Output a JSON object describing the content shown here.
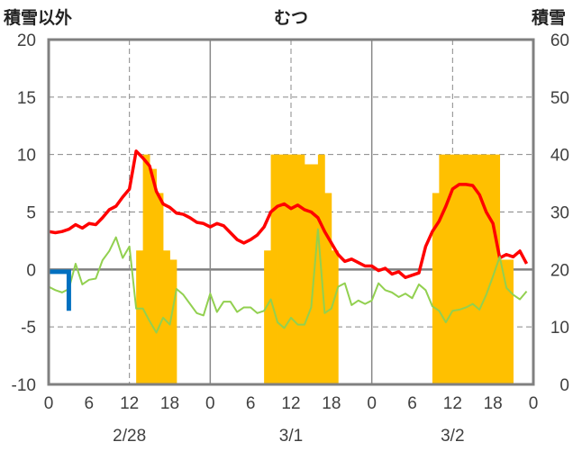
{
  "chart_data": {
    "type": "bar+line",
    "title": "むつ",
    "left_axis_label": "積雪以外",
    "right_axis_label": "積雪",
    "left_ylim": [
      -10,
      20
    ],
    "left_yticks": [
      20,
      15,
      10,
      5,
      0,
      -5,
      -10
    ],
    "right_ylim": [
      0,
      60
    ],
    "right_yticks": [
      60,
      50,
      40,
      30,
      20,
      10,
      0
    ],
    "xlim": [
      0,
      72
    ],
    "x_tick_labels": [
      "0",
      "6",
      "12",
      "18",
      "0",
      "6",
      "12",
      "18",
      "0",
      "6",
      "12",
      "18",
      "0"
    ],
    "date_labels": [
      {
        "hour": 12,
        "text": "2/28"
      },
      {
        "hour": 36,
        "text": "3/1"
      },
      {
        "hour": 60,
        "text": "3/2"
      }
    ],
    "grid": "dashed at 12h, solid at day boundaries",
    "colors": {
      "snow_depth": "#ffc000",
      "temperature": "#ff0000",
      "precip_small": "#0070c0",
      "line_green": "#92d050",
      "baseline_purple": "#7030a0",
      "frame": "#808080"
    },
    "snow_depth_bars": {
      "axis": "right",
      "x_start": 0,
      "x_step": 1,
      "values": [
        0,
        0,
        0,
        0,
        0,
        0,
        0,
        0,
        0,
        0,
        0,
        0,
        0,
        23.3,
        40,
        37.5,
        33.3,
        23.3,
        21.7,
        0,
        0,
        0,
        0,
        0,
        0,
        0,
        0,
        0,
        0,
        0,
        0,
        0,
        23.3,
        40,
        40,
        40,
        40,
        40,
        38.3,
        38.3,
        40,
        33.3,
        23.3,
        0,
        0,
        0,
        0,
        0,
        0,
        0,
        0,
        0,
        0,
        0,
        0,
        0,
        0,
        33.3,
        40,
        40,
        40,
        40,
        40,
        40,
        40,
        40,
        40,
        21.7,
        21.7,
        0,
        0,
        0,
        0
      ]
    },
    "series": [
      {
        "name": "temperature",
        "axis": "left",
        "x_start": 0,
        "x_step": 1,
        "values": [
          3.3,
          3.2,
          3.3,
          3.5,
          3.9,
          3.6,
          4.0,
          3.9,
          4.5,
          5.2,
          5.5,
          6.3,
          7.0,
          10.3,
          9.7,
          9.0,
          6.8,
          5.7,
          5.4,
          4.9,
          4.8,
          4.5,
          4.1,
          4.0,
          3.7,
          4.0,
          3.8,
          3.2,
          2.6,
          2.3,
          2.6,
          3.0,
          3.7,
          5.0,
          5.5,
          5.7,
          5.3,
          5.6,
          5.2,
          5.0,
          4.5,
          3.3,
          2.3,
          1.3,
          0.7,
          0.9,
          0.6,
          0.3,
          0.3,
          -0.1,
          0.1,
          -0.4,
          -0.2,
          -0.7,
          -0.5,
          -0.3,
          2.0,
          3.3,
          4.2,
          5.5,
          7.0,
          7.4,
          7.4,
          7.3,
          6.5,
          5.0,
          4.0,
          1.0,
          1.3,
          1.1,
          1.6,
          0.5
        ]
      },
      {
        "name": "green",
        "axis": "left",
        "x_start": 0,
        "x_step": 1,
        "values": [
          -1.5,
          -1.8,
          -2.0,
          -1.7,
          0.5,
          -1.3,
          -0.9,
          -0.8,
          0.8,
          1.6,
          2.8,
          1.0,
          2.0,
          -3.4,
          -3.4,
          -4.5,
          -5.5,
          -4.2,
          -4.8,
          -1.7,
          -2.2,
          -3.0,
          -3.8,
          -4.0,
          -2.1,
          -3.7,
          -2.8,
          -2.8,
          -3.7,
          -3.3,
          -3.3,
          -3.8,
          -3.6,
          -2.6,
          -4.6,
          -5.1,
          -4.2,
          -4.8,
          -4.8,
          -3.3,
          3.5,
          -3.8,
          -3.4,
          -1.5,
          -1.2,
          -3.1,
          -2.7,
          -3.0,
          -2.7,
          -1.2,
          -1.8,
          -2.0,
          -2.4,
          -2.1,
          -2.5,
          -1.3,
          -1.8,
          -3.2,
          -3.6,
          -4.6,
          -3.6,
          -3.5,
          -3.3,
          -3.0,
          -3.5,
          -2.2,
          -0.6,
          1.1,
          -1.6,
          -2.2,
          -2.6,
          -1.9
        ]
      },
      {
        "name": "precip",
        "axis": "left",
        "type": "step",
        "points": [
          [
            0,
            -0.2
          ],
          [
            3,
            -0.2
          ],
          [
            3,
            -3.6
          ]
        ]
      },
      {
        "name": "baseline",
        "axis": "left",
        "type": "flat",
        "value": -10
      }
    ]
  }
}
